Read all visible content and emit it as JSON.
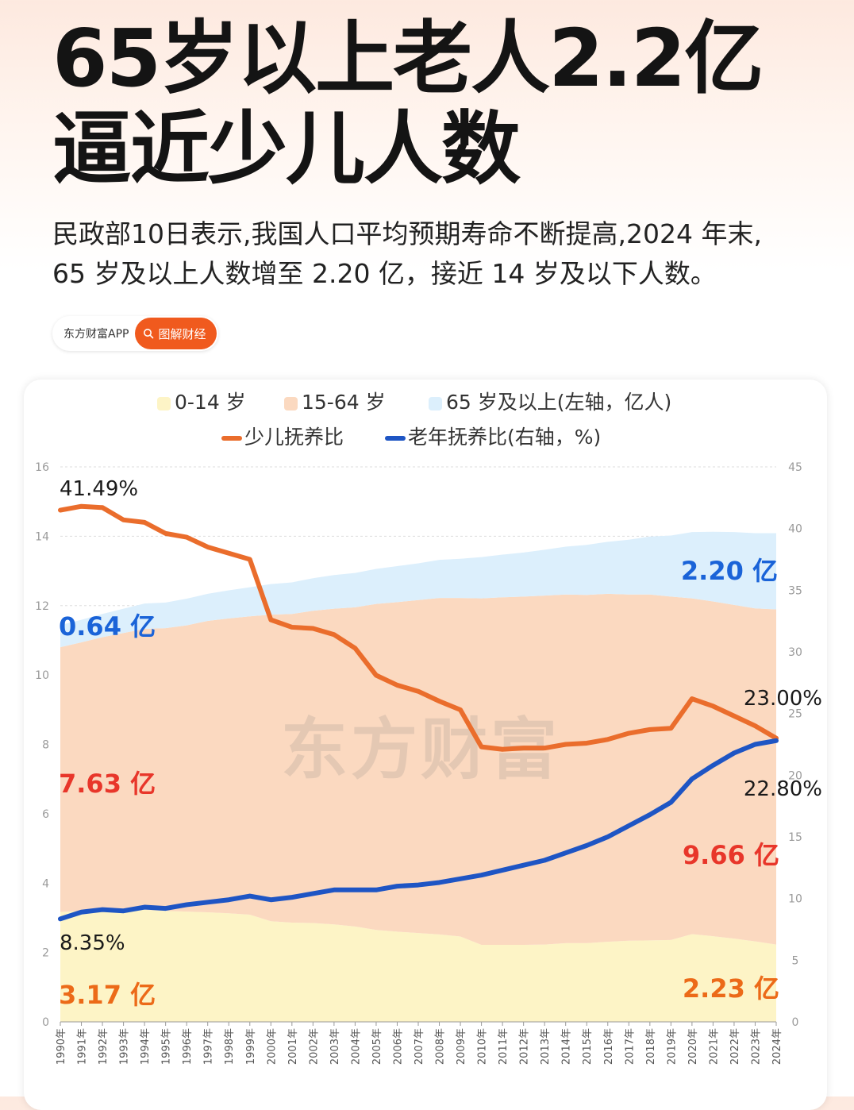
{
  "header": {
    "title_line1": "65岁以上老人2.2亿",
    "title_line2": "逼近少儿人数",
    "subtitle_line1": "民政部10日表示,我国人口平均预期寿命不断提高,2024 年末,",
    "subtitle_line2": "65 岁及以上人数增至 2.20 亿，接近 14 岁及以下人数。"
  },
  "source_tag": {
    "label": "东方财富APP",
    "button_label": "图解财经",
    "button_color": "#f05a1e"
  },
  "watermark": "东方财富",
  "chart_data": {
    "type": "area",
    "x": [
      "1990年",
      "1991年",
      "1992年",
      "1993年",
      "1994年",
      "1995年",
      "1996年",
      "1997年",
      "1998年",
      "1999年",
      "2000年",
      "2001年",
      "2002年",
      "2003年",
      "2004年",
      "2005年",
      "2006年",
      "2007年",
      "2008年",
      "2009年",
      "2010年",
      "2011年",
      "2012年",
      "2013年",
      "2014年",
      "2015年",
      "2016年",
      "2017年",
      "2018年",
      "2019年",
      "2020年",
      "2021年",
      "2022年",
      "2023年",
      "2024年"
    ],
    "y_left": {
      "ticks": [
        "0",
        "2",
        "4",
        "6",
        "8",
        "10",
        "12",
        "14",
        "16"
      ],
      "min": 0,
      "max": 16
    },
    "y_right": {
      "ticks": [
        "0",
        "5",
        "10",
        "15",
        "20",
        "25",
        "30",
        "35",
        "40",
        "45"
      ],
      "min": 0,
      "max": 45
    },
    "legend": [
      "0-14 岁",
      "15-64 岁",
      "65 岁及以上(左轴，亿人)",
      "少儿抚养比",
      "老年抚养比(右轴，%)"
    ],
    "stacked_series": [
      {
        "name": "0-14 岁",
        "color": "#fdf4c6",
        "values": [
          3.17,
          3.19,
          3.21,
          3.22,
          3.23,
          3.2,
          3.18,
          3.16,
          3.13,
          3.09,
          2.9,
          2.86,
          2.85,
          2.81,
          2.75,
          2.65,
          2.6,
          2.56,
          2.52,
          2.46,
          2.22,
          2.22,
          2.22,
          2.23,
          2.27,
          2.27,
          2.31,
          2.34,
          2.35,
          2.36,
          2.53,
          2.47,
          2.4,
          2.32,
          2.23
        ]
      },
      {
        "name": "15-64 岁",
        "color": "#fbd9c0",
        "values": [
          7.63,
          7.75,
          7.88,
          7.99,
          8.1,
          8.15,
          8.25,
          8.4,
          8.5,
          8.6,
          8.84,
          8.9,
          9.0,
          9.1,
          9.2,
          9.4,
          9.5,
          9.6,
          9.7,
          9.76,
          9.99,
          10.02,
          10.04,
          10.06,
          10.05,
          10.04,
          10.03,
          9.98,
          9.97,
          9.9,
          9.68,
          9.65,
          9.62,
          9.6,
          9.66
        ]
      },
      {
        "name": "65 岁及以上",
        "color": "#dceffc",
        "values": [
          0.64,
          0.65,
          0.67,
          0.7,
          0.73,
          0.74,
          0.77,
          0.78,
          0.81,
          0.84,
          0.88,
          0.91,
          0.94,
          0.97,
          0.99,
          1.01,
          1.04,
          1.06,
          1.1,
          1.13,
          1.19,
          1.23,
          1.27,
          1.32,
          1.38,
          1.44,
          1.5,
          1.58,
          1.67,
          1.76,
          1.91,
          2.01,
          2.1,
          2.17,
          2.2
        ]
      }
    ],
    "lines": [
      {
        "name": "少儿抚养比",
        "axis": "right",
        "color": "#ea6d2c",
        "values": [
          41.49,
          41.8,
          41.7,
          40.7,
          40.5,
          39.6,
          39.3,
          38.5,
          38.0,
          37.5,
          32.6,
          32.0,
          31.9,
          31.4,
          30.3,
          28.1,
          27.3,
          26.8,
          26.0,
          25.3,
          22.3,
          22.1,
          22.2,
          22.2,
          22.5,
          22.6,
          22.9,
          23.4,
          23.7,
          23.8,
          26.2,
          25.6,
          24.8,
          24.0,
          23.0
        ]
      },
      {
        "name": "老年抚养比",
        "axis": "right",
        "color": "#1e55c4",
        "values": [
          8.35,
          8.9,
          9.1,
          9.0,
          9.3,
          9.2,
          9.5,
          9.7,
          9.9,
          10.2,
          9.9,
          10.1,
          10.4,
          10.7,
          10.7,
          10.7,
          11.0,
          11.1,
          11.3,
          11.6,
          11.9,
          12.3,
          12.7,
          13.1,
          13.7,
          14.3,
          15.0,
          15.9,
          16.8,
          17.8,
          19.7,
          20.8,
          21.8,
          22.5,
          22.8
        ]
      }
    ],
    "annotations": [
      {
        "text": "41.49%",
        "color": "#1a1a1a"
      },
      {
        "text": "8.35%",
        "color": "#1a1a1a"
      },
      {
        "text": "23.00%",
        "color": "#1a1a1a"
      },
      {
        "text": "22.80%",
        "color": "#1a1a1a"
      },
      {
        "text": "0.64 亿",
        "color": "#1a63d8"
      },
      {
        "text": "7.63 亿",
        "color": "#e8362a"
      },
      {
        "text": "3.17 亿",
        "color": "#ec6a18"
      },
      {
        "text": "2.20 亿",
        "color": "#1a63d8"
      },
      {
        "text": "9.66 亿",
        "color": "#e8362a"
      },
      {
        "text": "2.23 亿",
        "color": "#ec6a18"
      }
    ],
    "grid": true,
    "legend_position": "top-center"
  }
}
